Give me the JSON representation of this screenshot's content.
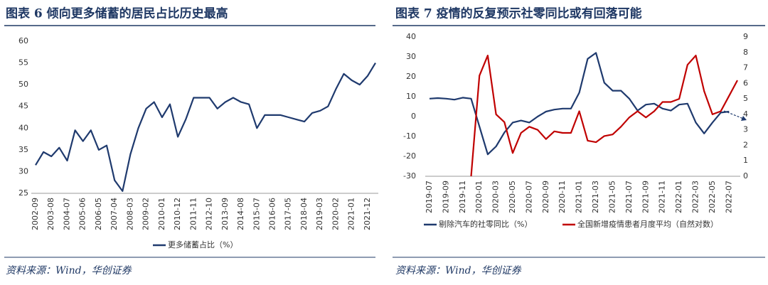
{
  "chart_data": [
    {
      "type": "line",
      "title": "图表 6   倾向更多储蓄的居民占比历史最高",
      "source": "资料来源：Wind，华创证券",
      "categories": [
        "2002-09",
        null,
        "2003-08",
        null,
        "2004-07",
        null,
        "2005-06",
        null,
        "2006-05",
        null,
        "2007-04",
        null,
        "2008-03",
        null,
        "2009-02",
        null,
        "2010-01",
        null,
        "2010-12",
        null,
        "2011-11",
        null,
        "2012-10",
        null,
        "2013-09",
        null,
        "2014-08",
        null,
        "2015-07",
        null,
        "2016-06",
        null,
        "2017-05",
        null,
        "2018-04",
        null,
        "2019-03",
        null,
        "2020-02",
        null,
        "2021-01",
        null,
        "2021-12",
        null
      ],
      "series": [
        {
          "name": "更多储蓄占比（%）",
          "color": "#1f3a6e",
          "values": [
            31.5,
            34.5,
            33.5,
            35.5,
            32.5,
            39.5,
            37,
            39.5,
            35,
            36,
            28,
            25.5,
            34,
            40,
            44.5,
            46,
            42.5,
            45.5,
            38,
            42,
            47,
            47,
            47,
            44.5,
            46,
            47,
            46,
            45.5,
            40,
            43,
            43,
            43,
            42.5,
            42,
            41.5,
            43.5,
            44,
            45,
            49,
            52.5,
            51,
            50,
            52,
            55
          ]
        }
      ],
      "ylim": [
        25,
        60
      ],
      "yticks": [
        25,
        30,
        35,
        40,
        45,
        50,
        55,
        60
      ],
      "legend": "bottom"
    },
    {
      "type": "line",
      "title": "图表 7   疫情的反复预示社零同比或有回落可能",
      "source": "资料来源：Wind，华创证券",
      "categories": [
        "2019-07",
        null,
        "2019-09",
        null,
        "2019-11",
        null,
        "2020-01",
        null,
        "2020-03",
        null,
        "2020-05",
        null,
        "2020-07",
        null,
        "2020-09",
        null,
        "2020-11",
        null,
        "2021-01",
        null,
        "2021-03",
        null,
        "2021-05",
        null,
        "2021-07",
        null,
        "2021-09",
        null,
        "2021-11",
        null,
        "2022-01",
        null,
        "2022-03",
        null,
        "2022-05",
        null,
        "2022-07",
        null
      ],
      "series": [
        {
          "name": "剔除汽车的社零同比（%）",
          "color": "#1f3a6e",
          "values": [
            9,
            9.3,
            9,
            8.5,
            9.5,
            9,
            -5,
            -19,
            -15,
            -8,
            -3,
            -2,
            -3,
            0,
            2.5,
            3.5,
            4,
            4,
            12,
            29,
            32,
            17,
            13,
            13,
            9,
            3,
            6,
            6.5,
            4,
            3,
            6,
            6.5,
            -3,
            -8.5,
            -3,
            2,
            2.5,
            null
          ]
        },
        {
          "name": "全国新增疫情患者月度平均（自然对数）",
          "color": "#c00000",
          "axis": "y2",
          "values": [
            null,
            null,
            null,
            null,
            null,
            0,
            6.5,
            7.8,
            4,
            3.5,
            1.5,
            2.8,
            3.2,
            3,
            2.4,
            2.9,
            2.8,
            2.8,
            4.2,
            2.3,
            2.2,
            2.6,
            2.7,
            3.2,
            3.8,
            4.2,
            3.8,
            4.2,
            4.8,
            4.8,
            5,
            7.2,
            7.8,
            5.5,
            4,
            4.2,
            5.2,
            6.2
          ]
        }
      ],
      "ylim": [
        -30,
        40
      ],
      "yticks": [
        -30,
        -20,
        -10,
        0,
        10,
        20,
        30,
        40
      ],
      "y2lim": [
        0,
        9
      ],
      "y2ticks": [
        0,
        1,
        2,
        3,
        4,
        5,
        6,
        7,
        8,
        9
      ],
      "legend": "bottom"
    }
  ]
}
